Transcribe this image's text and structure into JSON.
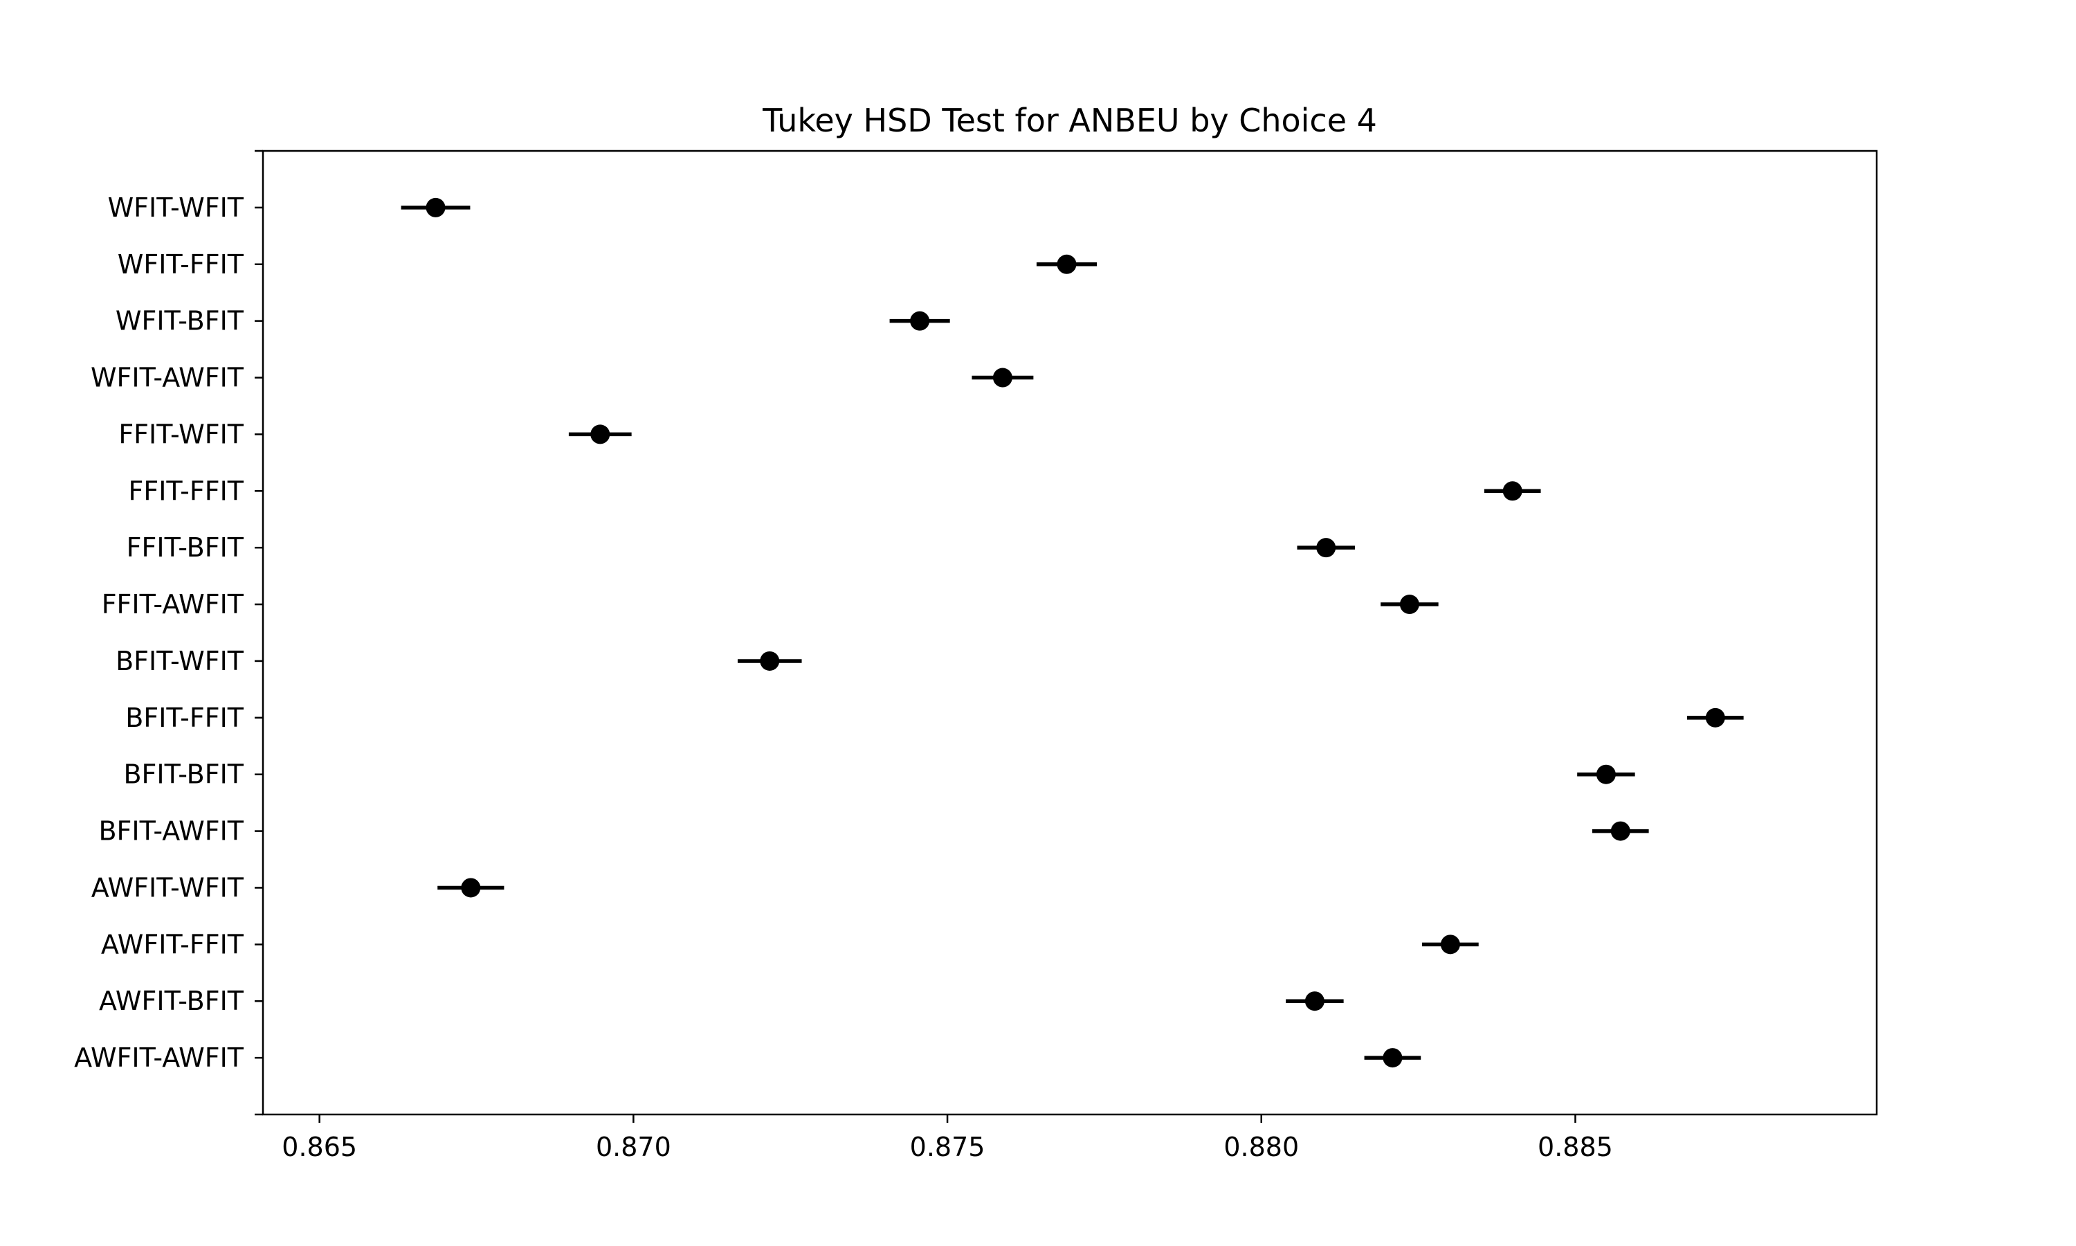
{
  "chart_data": {
    "type": "scatter",
    "title": "Tukey HSD Test for ANBEU by Choice 4",
    "xlabel": "",
    "ylabel": "",
    "xlim": [
      0.8641,
      0.8898
    ],
    "x_ticks": [
      0.865,
      0.87,
      0.875,
      0.88,
      0.885
    ],
    "x_tick_labels": [
      "0.865",
      "0.870",
      "0.875",
      "0.880",
      "0.885"
    ],
    "grid": false,
    "series": [
      {
        "points": [
          {
            "label": "WFIT-WFIT",
            "mean": 0.86685,
            "lower": 0.8663,
            "upper": 0.8674
          },
          {
            "label": "WFIT-FFIT",
            "mean": 0.8769,
            "lower": 0.87642,
            "upper": 0.87738
          },
          {
            "label": "WFIT-BFIT",
            "mean": 0.87456,
            "lower": 0.87408,
            "upper": 0.87504
          },
          {
            "label": "WFIT-AWFIT",
            "mean": 0.87588,
            "lower": 0.87539,
            "upper": 0.87637
          },
          {
            "label": "FFIT-WFIT",
            "mean": 0.86947,
            "lower": 0.86897,
            "upper": 0.86997
          },
          {
            "label": "FFIT-FFIT",
            "mean": 0.884,
            "lower": 0.88355,
            "upper": 0.88445
          },
          {
            "label": "FFIT-BFIT",
            "mean": 0.88103,
            "lower": 0.88057,
            "upper": 0.88149
          },
          {
            "label": "FFIT-AWFIT",
            "mean": 0.88236,
            "lower": 0.8819,
            "upper": 0.88282
          },
          {
            "label": "BFIT-WFIT",
            "mean": 0.87217,
            "lower": 0.87166,
            "upper": 0.87268
          },
          {
            "label": "BFIT-FFIT",
            "mean": 0.88723,
            "lower": 0.88678,
            "upper": 0.88768
          },
          {
            "label": "BFIT-BFIT",
            "mean": 0.88549,
            "lower": 0.88503,
            "upper": 0.88595
          },
          {
            "label": "BFIT-AWFIT",
            "mean": 0.88572,
            "lower": 0.88527,
            "upper": 0.88617
          },
          {
            "label": "AWFIT-WFIT",
            "mean": 0.86741,
            "lower": 0.86688,
            "upper": 0.86794
          },
          {
            "label": "AWFIT-FFIT",
            "mean": 0.88301,
            "lower": 0.88256,
            "upper": 0.88346
          },
          {
            "label": "AWFIT-BFIT",
            "mean": 0.88085,
            "lower": 0.88039,
            "upper": 0.88131
          },
          {
            "label": "AWFIT-AWFIT",
            "mean": 0.88209,
            "lower": 0.88164,
            "upper": 0.88254
          }
        ]
      }
    ]
  }
}
